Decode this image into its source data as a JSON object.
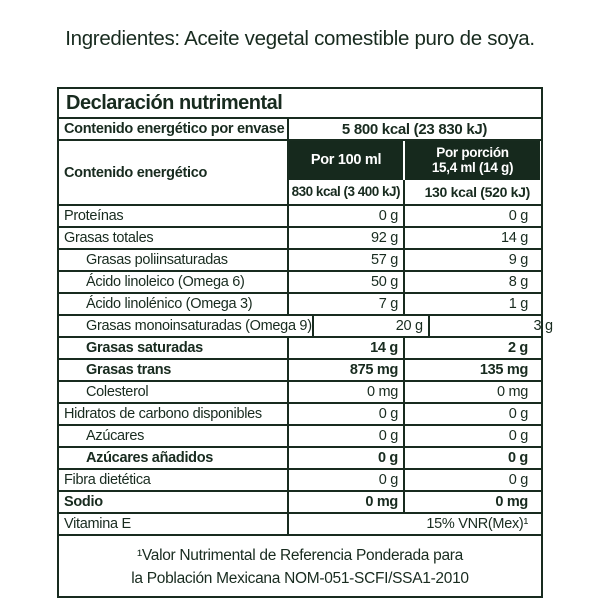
{
  "page": {
    "ingredients_line": "Ingredientes: Aceite vegetal comestible puro de soya."
  },
  "table": {
    "title": "Declaración nutrimental",
    "per_package": {
      "label": "Contenido energético por envase",
      "value": "5 800 kcal (23 830 kJ)"
    },
    "energy_section": {
      "label": "Contenido energético",
      "col1_header": "Por 100 ml",
      "col2_header_line1": "Por porción",
      "col2_header_line2": "15,4 ml (14 g)",
      "col1_value": "830 kcal (3 400 kJ)",
      "col2_value": "130 kcal (520 kJ)"
    },
    "rows": [
      {
        "label": "Proteínas",
        "v1": "0 g",
        "v2": "0 g",
        "indent": false,
        "bold": false
      },
      {
        "label": "Grasas totales",
        "v1": "92 g",
        "v2": "14 g",
        "indent": false,
        "bold": false
      },
      {
        "label": "Grasas poliinsaturadas",
        "v1": "57 g",
        "v2": "9 g",
        "indent": true,
        "bold": false
      },
      {
        "label": "Ácido linoleico (Omega 6)",
        "v1": "50 g",
        "v2": "8 g",
        "indent": true,
        "bold": false
      },
      {
        "label": "Ácido linolénico (Omega 3)",
        "v1": "7 g",
        "v2": "1 g",
        "indent": true,
        "bold": false
      },
      {
        "label": "Grasas monoinsaturadas (Omega 9)",
        "v1": "20 g",
        "v2": "3 g",
        "indent": true,
        "bold": false
      },
      {
        "label": "Grasas saturadas",
        "v1": "14 g",
        "v2": "2 g",
        "indent": true,
        "bold": true
      },
      {
        "label": "Grasas trans",
        "v1": "875 mg",
        "v2": "135 mg",
        "indent": true,
        "bold": true
      },
      {
        "label": "Colesterol",
        "v1": "0 mg",
        "v2": "0 mg",
        "indent": true,
        "bold": false
      },
      {
        "label": "Hidratos de carbono disponibles",
        "v1": "0 g",
        "v2": "0 g",
        "indent": false,
        "bold": false
      },
      {
        "label": "Azúcares",
        "v1": "0 g",
        "v2": "0 g",
        "indent": true,
        "bold": false
      },
      {
        "label": "Azúcares añadidos",
        "v1": "0 g",
        "v2": "0 g",
        "indent": true,
        "bold": true
      },
      {
        "label": "Fibra dietética",
        "v1": "0 g",
        "v2": "0 g",
        "indent": false,
        "bold": false
      },
      {
        "label": "Sodio",
        "v1": "0 mg",
        "v2": "0 mg",
        "indent": false,
        "bold": true
      },
      {
        "label": "Vitamina E",
        "span": true,
        "value": "15% VNR(Mex)¹",
        "indent": false,
        "bold": false
      }
    ],
    "footnote_line1": "¹Valor Nutrimental de Referencia Ponderada para",
    "footnote_line2": "la Población Mexicana NOM-051-SCFI/SSA1-2010"
  },
  "colors": {
    "ink": "#182b1f",
    "header-bg": "#16291d",
    "header-text": "#ffffff",
    "page-bg": "#ffffff"
  }
}
